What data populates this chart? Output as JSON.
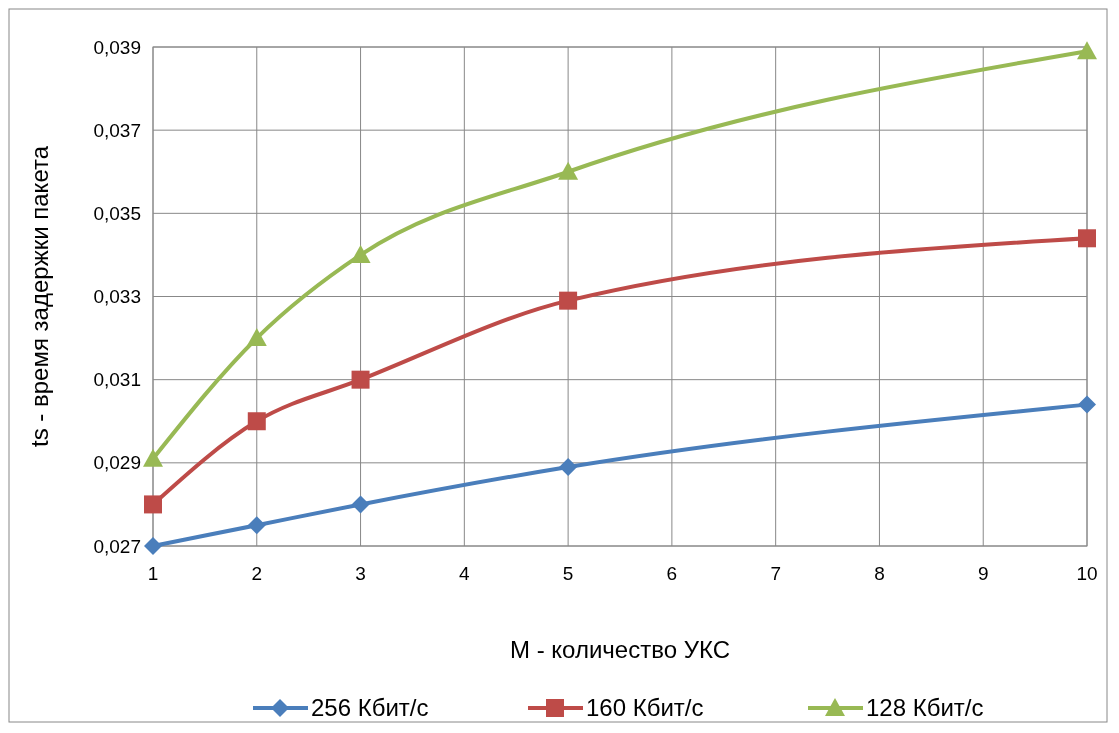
{
  "chart_data": {
    "type": "line",
    "xlabel": "M - количество УКС",
    "ylabel": "ts - время задержки пакета",
    "xlim": [
      1,
      10
    ],
    "xticks": [
      1,
      2,
      3,
      4,
      5,
      6,
      7,
      8,
      9,
      10
    ],
    "ylim": [
      0.027,
      0.039
    ],
    "yticks": [
      {
        "value": 0.027,
        "label": "0,027"
      },
      {
        "value": 0.029,
        "label": "0,029"
      },
      {
        "value": 0.031,
        "label": "0,031"
      },
      {
        "value": 0.033,
        "label": "0,033"
      },
      {
        "value": 0.035,
        "label": "0,035"
      },
      {
        "value": 0.037,
        "label": "0,037"
      },
      {
        "value": 0.039,
        "label": "0,039"
      }
    ],
    "grid": true,
    "legend": "bottom",
    "series": [
      {
        "name": "256 Кбит/с",
        "color": "#4a7ebb",
        "marker": "diamond",
        "x": [
          1,
          2,
          3,
          5,
          10
        ],
        "values": [
          0.027,
          0.0275,
          0.028,
          0.0289,
          0.0304
        ]
      },
      {
        "name": "160 Кбит/с",
        "color": "#be4b48",
        "marker": "square",
        "x": [
          1,
          2,
          3,
          5,
          10
        ],
        "values": [
          0.028,
          0.03,
          0.031,
          0.0329,
          0.0344
        ]
      },
      {
        "name": "128 Кбит/с",
        "color": "#98b954",
        "marker": "triangle",
        "x": [
          1,
          2,
          3,
          5,
          10
        ],
        "values": [
          0.0291,
          0.032,
          0.034,
          0.036,
          0.0389
        ]
      }
    ]
  }
}
